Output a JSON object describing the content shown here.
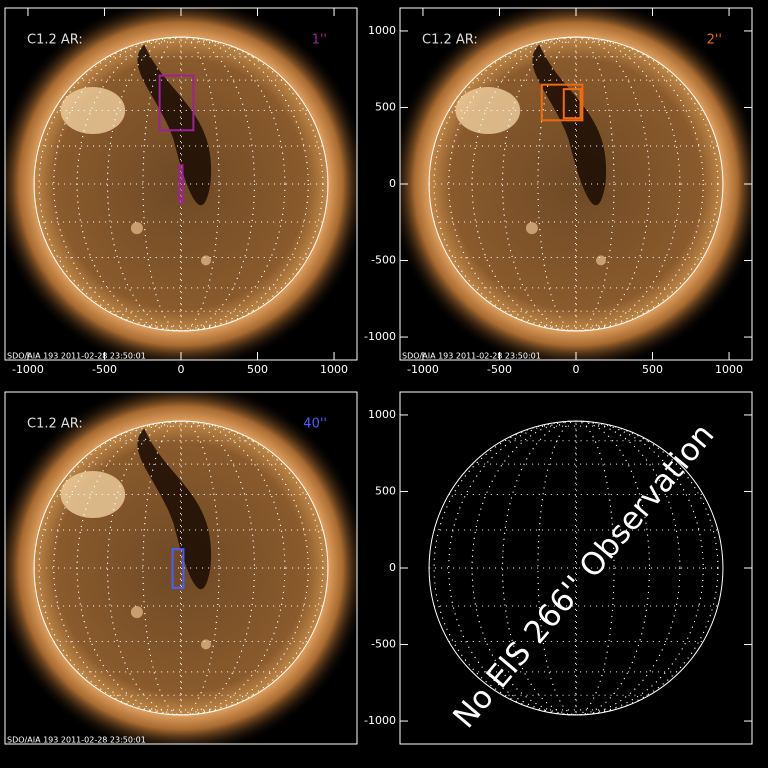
{
  "chart_data": [
    {
      "type": "solar-image",
      "label": "C1.2 AR:",
      "slit_label": "1''",
      "color": "#a0209c",
      "footer": "SDO/AIA 193   2011-02-28 23:50:01",
      "xlim": [
        -1150,
        1150
      ],
      "ylim": [
        -1150,
        1150
      ],
      "xticks": [
        -1000,
        -500,
        0,
        500,
        1000
      ],
      "yticks": [],
      "overlays": [
        {
          "x": [
            -130,
            71
          ],
          "y": [
            351,
            708
          ]
        },
        {
          "x": [
            0,
            0
          ],
          "y": [
            -123,
            123
          ]
        }
      ]
    },
    {
      "type": "solar-image",
      "label": "C1.2 AR:",
      "slit_label": "2''",
      "color": "#f06a10",
      "footer": "SDO/AIA 193   2011-02-28 23:50:01",
      "xlim": [
        -1150,
        1150
      ],
      "ylim": [
        -1150,
        1150
      ],
      "xticks": [
        -1000,
        -500,
        0,
        500,
        1000
      ],
      "yticks": [
        -1000,
        -500,
        0,
        500,
        1000
      ],
      "overlays": [
        {
          "x": [
            -214,
            32
          ],
          "y": [
            416,
            649
          ]
        },
        {
          "x": [
            -70,
            20
          ],
          "y": [
            430,
            620
          ]
        }
      ]
    },
    {
      "type": "solar-image",
      "label": "C1.2 AR:",
      "slit_label": "40''",
      "color": "#4a5cff",
      "footer": "SDO/AIA 193   2011-02-28 23:50:01",
      "xlim": [
        -1150,
        1150
      ],
      "ylim": [
        -1150,
        1150
      ],
      "xticks": [],
      "yticks": [],
      "overlays": [
        {
          "x": [
            -45,
            6
          ],
          "y": [
            -130,
            123
          ]
        }
      ]
    },
    {
      "type": "solar-grid",
      "annotation": "No EIS 266'' Observation",
      "xlim": [
        -1150,
        1150
      ],
      "ylim": [
        -1150,
        1150
      ],
      "xticks": [],
      "yticks": [
        -1000,
        -500,
        0,
        500,
        1000
      ],
      "overlays": []
    }
  ]
}
